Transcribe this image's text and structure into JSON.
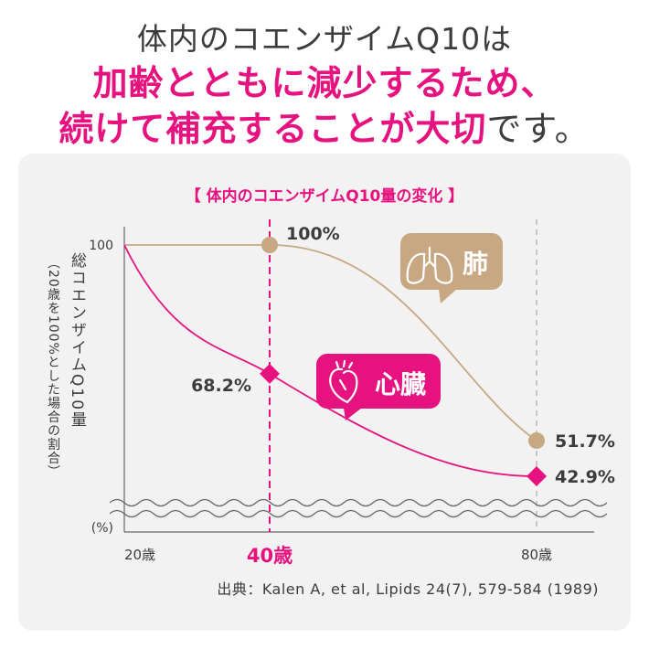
{
  "headline": {
    "line1": "体内のコエンザイムQ10は",
    "line2": "加齢とともに減少するため、",
    "line3_main": "続けて補充することが大切",
    "line3_tail": "です。"
  },
  "colors": {
    "accent": "#e6127f",
    "lung": "#c8a882",
    "text": "#3c3c3c"
  },
  "chart_data": {
    "type": "line",
    "title": "【 体内のコエンザイムQ10量の変化 】",
    "ylabel": "総コエンザイムQ10量",
    "ylabel_note": "（20歳を100%とした場合の割合）",
    "y_unit": "(%)",
    "y_tick": "100",
    "x": [
      20,
      40,
      80
    ],
    "x_ticks": [
      "20歳",
      "40歳",
      "80歳"
    ],
    "series": [
      {
        "name": "肺",
        "values": [
          100,
          100,
          51.7
        ],
        "point_labels": [
          "",
          "100%",
          "51.7%"
        ],
        "icon": "lungs-icon"
      },
      {
        "name": "心臓",
        "values": [
          100,
          68.2,
          42.9
        ],
        "point_labels": [
          "",
          "68.2%",
          "42.9%"
        ],
        "icon": "heart-icon"
      }
    ],
    "highlight_x": "40歳",
    "source": "出典：Kalen A, et al, Lipids 24(7), 579-584 (1989)"
  }
}
